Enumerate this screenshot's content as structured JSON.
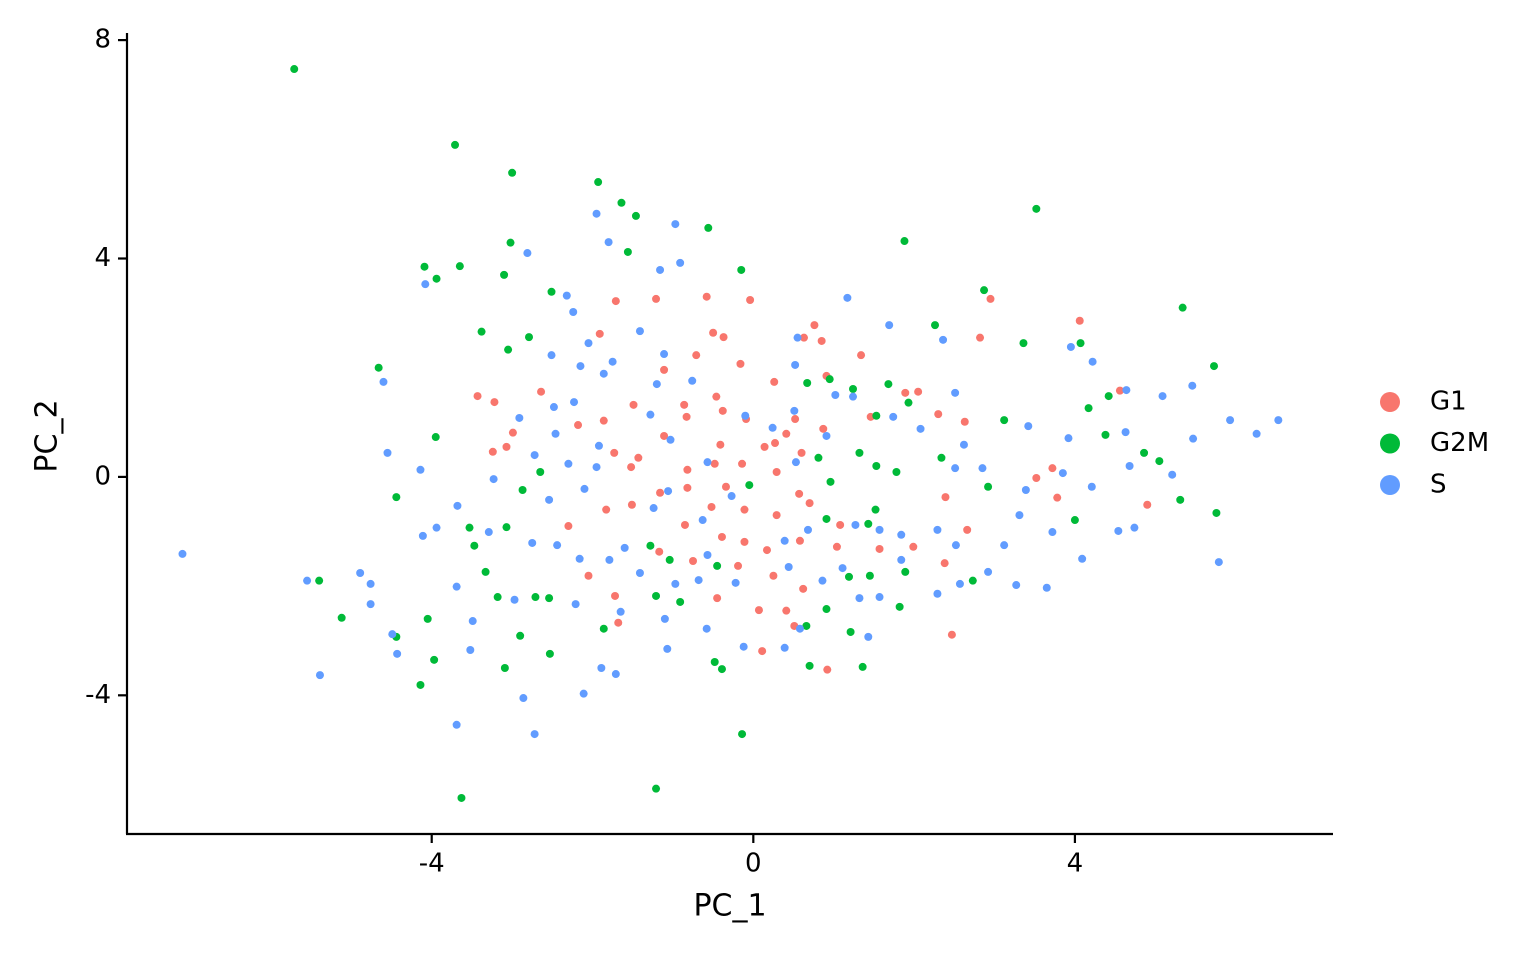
{
  "chart_data": {
    "type": "scatter",
    "xlabel": "PC_1",
    "ylabel": "PC_2",
    "xlim": [
      -7.79,
      7.21
    ],
    "ylim": [
      -6.54,
      8.13
    ],
    "xticks": [
      -4,
      0,
      4
    ],
    "yticks": [
      -4,
      0,
      4,
      8
    ],
    "grid": false,
    "legend": "right",
    "series": [
      {
        "name": "G1",
        "color": "#F8766D",
        "x": [
          2.95,
          -0.58,
          -0.04,
          -1.21,
          -1.71,
          0.76,
          4.06,
          2.82,
          -1.91,
          -0.5,
          -0.37,
          0.63,
          0.85,
          1.34,
          -0.71,
          -0.16,
          -1.11,
          0.91,
          0.26,
          1.89,
          2.05,
          4.56,
          -3.43,
          -3.22,
          -2.64,
          -1.49,
          -0.46,
          -0.86,
          -0.38,
          2.3,
          2.63,
          1.46,
          -2.18,
          -1.86,
          -0.83,
          -0.09,
          0.52,
          -2.99,
          -1.11,
          0.27,
          0.87,
          -3.07,
          -3.24,
          -0.41,
          0.14,
          -1.73,
          -1.43,
          0.6,
          0.41,
          -0.48,
          -0.14,
          -0.82,
          -1.52,
          3.72,
          3.52,
          3.78,
          4.9,
          2.39,
          2.66,
          0.29,
          0.57,
          -0.34,
          -0.82,
          -1.16,
          -1.51,
          -1.83,
          -2.3,
          -0.52,
          -0.11,
          0.29,
          0.7,
          1.08,
          -0.85,
          -0.39,
          -0.11,
          0.17,
          0.58,
          1.04,
          1.57,
          1.99,
          2.38,
          -1.17,
          -0.75,
          -0.19,
          0.25,
          0.62,
          -2.05,
          -1.72,
          -0.45,
          0.07,
          0.41,
          -1.68,
          2.47,
          0.11,
          0.92,
          0.51
        ],
        "values": [
          3.26,
          3.3,
          3.24,
          3.26,
          3.22,
          2.78,
          2.86,
          2.55,
          2.62,
          2.64,
          2.56,
          2.55,
          2.49,
          2.23,
          2.23,
          2.07,
          1.96,
          1.85,
          1.74,
          1.54,
          1.56,
          1.58,
          1.48,
          1.37,
          1.56,
          1.32,
          1.47,
          1.32,
          1.21,
          1.15,
          1.01,
          1.1,
          0.95,
          1.03,
          1.1,
          1.06,
          1.06,
          0.81,
          0.75,
          0.62,
          0.88,
          0.55,
          0.46,
          0.59,
          0.55,
          0.44,
          0.35,
          0.44,
          0.79,
          0.24,
          0.24,
          0.13,
          0.18,
          0.16,
          -0.02,
          -0.38,
          -0.51,
          -0.37,
          -0.97,
          0.09,
          -0.31,
          -0.18,
          -0.2,
          -0.29,
          -0.51,
          -0.6,
          -0.9,
          -0.55,
          -0.6,
          -0.7,
          -0.48,
          -0.88,
          -0.88,
          -1.1,
          -1.19,
          -1.34,
          -1.17,
          -1.28,
          -1.32,
          -1.28,
          -1.58,
          -1.37,
          -1.54,
          -1.63,
          -1.81,
          -2.05,
          -1.81,
          -2.18,
          -2.22,
          -2.44,
          -2.45,
          -2.67,
          -2.89,
          -3.19,
          -3.53,
          -2.73
        ]
      },
      {
        "name": "G2M",
        "color": "#00BA38",
        "x": [
          -5.71,
          -3.71,
          -3.0,
          -1.93,
          -1.64,
          -1.46,
          -0.56,
          3.52,
          1.88,
          -3.02,
          -4.09,
          -3.65,
          -3.94,
          -3.1,
          -1.56,
          -0.15,
          -2.51,
          2.87,
          5.34,
          -3.38,
          -2.79,
          -3.05,
          2.26,
          3.36,
          -4.66,
          5.73,
          4.07,
          1.68,
          0.67,
          0.95,
          1.24,
          4.42,
          1.93,
          4.17,
          3.12,
          1.53,
          -3.95,
          4.38,
          4.86,
          5.05,
          1.32,
          1.53,
          1.78,
          2.34,
          2.92,
          0.81,
          0.96,
          -0.05,
          -2.65,
          -2.87,
          -4.44,
          5.31,
          5.76,
          4.0,
          0.91,
          1.52,
          1.43,
          -3.53,
          -3.47,
          -3.07,
          -1.28,
          -1.04,
          -0.45,
          1.19,
          1.45,
          1.89,
          -3.33,
          -5.4,
          -3.18,
          -2.71,
          -2.54,
          -1.21,
          -0.91,
          0.91,
          1.82,
          2.73,
          -5.12,
          -4.05,
          -2.9,
          -1.86,
          0.66,
          1.21,
          -4.44,
          -3.97,
          -2.53,
          -3.09,
          -0.48,
          -0.39,
          0.7,
          1.36,
          -4.14,
          -0.14,
          -1.21,
          -3.63
        ],
        "values": [
          7.47,
          6.08,
          5.57,
          5.4,
          5.02,
          4.78,
          4.56,
          4.91,
          4.32,
          4.29,
          3.85,
          3.86,
          3.63,
          3.7,
          4.12,
          3.79,
          3.39,
          3.42,
          3.1,
          2.66,
          2.56,
          2.33,
          2.78,
          2.45,
          2.0,
          2.03,
          2.45,
          1.7,
          1.72,
          1.79,
          1.61,
          1.48,
          1.36,
          1.26,
          1.04,
          1.12,
          0.73,
          0.77,
          0.44,
          0.29,
          0.44,
          0.2,
          0.09,
          0.35,
          -0.18,
          0.35,
          -0.09,
          -0.15,
          0.09,
          -0.24,
          -0.37,
          -0.42,
          -0.66,
          -0.79,
          -0.77,
          -0.6,
          -0.86,
          -0.93,
          -1.26,
          -0.92,
          -1.26,
          -1.52,
          -1.63,
          -1.83,
          -1.81,
          -1.74,
          -1.74,
          -1.9,
          -2.2,
          -2.2,
          -2.22,
          -2.18,
          -2.29,
          -2.42,
          -2.38,
          -1.9,
          -2.58,
          -2.6,
          -2.91,
          -2.78,
          -2.73,
          -2.84,
          -2.93,
          -3.35,
          -3.24,
          -3.5,
          -3.39,
          -3.52,
          -3.46,
          -3.48,
          -3.81,
          -4.71,
          -5.71,
          -5.88
        ]
      },
      {
        "name": "S",
        "color": "#619CFF",
        "x": [
          -7.1,
          6.53,
          6.26,
          5.93,
          5.47,
          5.09,
          5.46,
          5.21,
          5.79,
          4.64,
          3.95,
          4.22,
          1.17,
          1.69,
          2.36,
          0.55,
          0.52,
          2.51,
          1.24,
          -1.8,
          -1.95,
          -0.97,
          -0.91,
          -1.16,
          -2.81,
          -4.08,
          -4.6,
          -4.55,
          -4.14,
          -3.94,
          -4.11,
          -4.89,
          -4.76,
          -5.55,
          -4.76,
          -4.49,
          -4.43,
          -5.39,
          -3.69,
          -3.49,
          -3.52,
          -3.69,
          -2.72,
          -2.86,
          -2.11,
          -1.89,
          -1.71,
          -1.07,
          -2.21,
          -2.97,
          -0.58,
          -0.12,
          0.39,
          0.58,
          1.43,
          1.57,
          2.29,
          2.57,
          2.92,
          3.65,
          3.27,
          3.72,
          4.09,
          4.54,
          4.74,
          4.21,
          3.85,
          4.68,
          4.63,
          3.92,
          3.39,
          3.31,
          3.12,
          2.52,
          2.29,
          1.84,
          3.42,
          2.62,
          2.08,
          2.85,
          2.51,
          1.74,
          1.02,
          0.51,
          0.24,
          -0.1,
          0.91,
          0.53,
          -0.57,
          -1.03,
          -1.28,
          -2.15,
          -2.05,
          -1.75,
          -1.41,
          -2.51,
          -2.24,
          -2.32,
          -1.86,
          -1.11,
          -0.76,
          -1.2,
          -2.23,
          -2.48,
          -2.91,
          -1.92,
          -2.46,
          -2.72,
          -2.3,
          -1.95,
          -2.1,
          -2.54,
          -3.23,
          -3.68,
          -3.29,
          -2.75,
          -2.44,
          -2.16,
          -1.79,
          -1.6,
          -1.41,
          -1.65,
          -1.1,
          -0.97,
          -0.68,
          -0.57,
          -0.22,
          0.44,
          0.86,
          1.11,
          1.32,
          0.39,
          0.68,
          1.27,
          1.57,
          1.84,
          -0.63,
          -0.27,
          -1.06,
          -1.24
        ],
        "values": [
          -1.41,
          1.04,
          0.79,
          1.04,
          0.7,
          1.48,
          1.67,
          0.04,
          -1.56,
          1.59,
          2.38,
          2.11,
          3.28,
          2.78,
          2.51,
          2.55,
          2.05,
          1.54,
          1.47,
          4.3,
          4.82,
          4.63,
          3.92,
          3.79,
          4.1,
          3.53,
          1.74,
          0.44,
          0.13,
          -0.93,
          -1.08,
          -1.76,
          -1.96,
          -1.9,
          -2.33,
          -2.88,
          -3.24,
          -3.63,
          -2.01,
          -2.64,
          -3.17,
          -4.54,
          -4.71,
          -4.05,
          -3.97,
          -3.5,
          -3.61,
          -3.15,
          -2.33,
          -2.25,
          -2.78,
          -3.11,
          -3.13,
          -2.78,
          -2.93,
          -2.2,
          -2.14,
          -1.96,
          -1.74,
          -2.03,
          -1.98,
          -1.01,
          -1.5,
          -0.99,
          -0.93,
          -0.18,
          0.07,
          0.2,
          0.82,
          0.71,
          -0.24,
          -0.7,
          -1.25,
          -1.25,
          -0.97,
          -1.06,
          0.93,
          0.59,
          0.88,
          0.16,
          0.16,
          1.1,
          1.5,
          1.21,
          0.9,
          1.12,
          0.75,
          0.27,
          0.27,
          0.68,
          1.14,
          2.03,
          2.45,
          2.11,
          2.67,
          2.23,
          3.02,
          3.32,
          1.89,
          2.25,
          1.76,
          1.7,
          1.37,
          1.28,
          1.08,
          0.57,
          0.79,
          0.4,
          0.24,
          0.18,
          -0.22,
          -0.42,
          -0.04,
          -0.53,
          -1.01,
          -1.21,
          -1.25,
          -1.5,
          -1.52,
          -1.3,
          -1.76,
          -2.47,
          -2.6,
          -1.96,
          -1.89,
          -1.43,
          -1.94,
          -1.65,
          -1.9,
          -1.67,
          -2.22,
          -1.17,
          -0.97,
          -0.88,
          -0.97,
          -1.52,
          -0.79,
          -0.35,
          -0.26,
          -0.57
        ]
      }
    ]
  }
}
